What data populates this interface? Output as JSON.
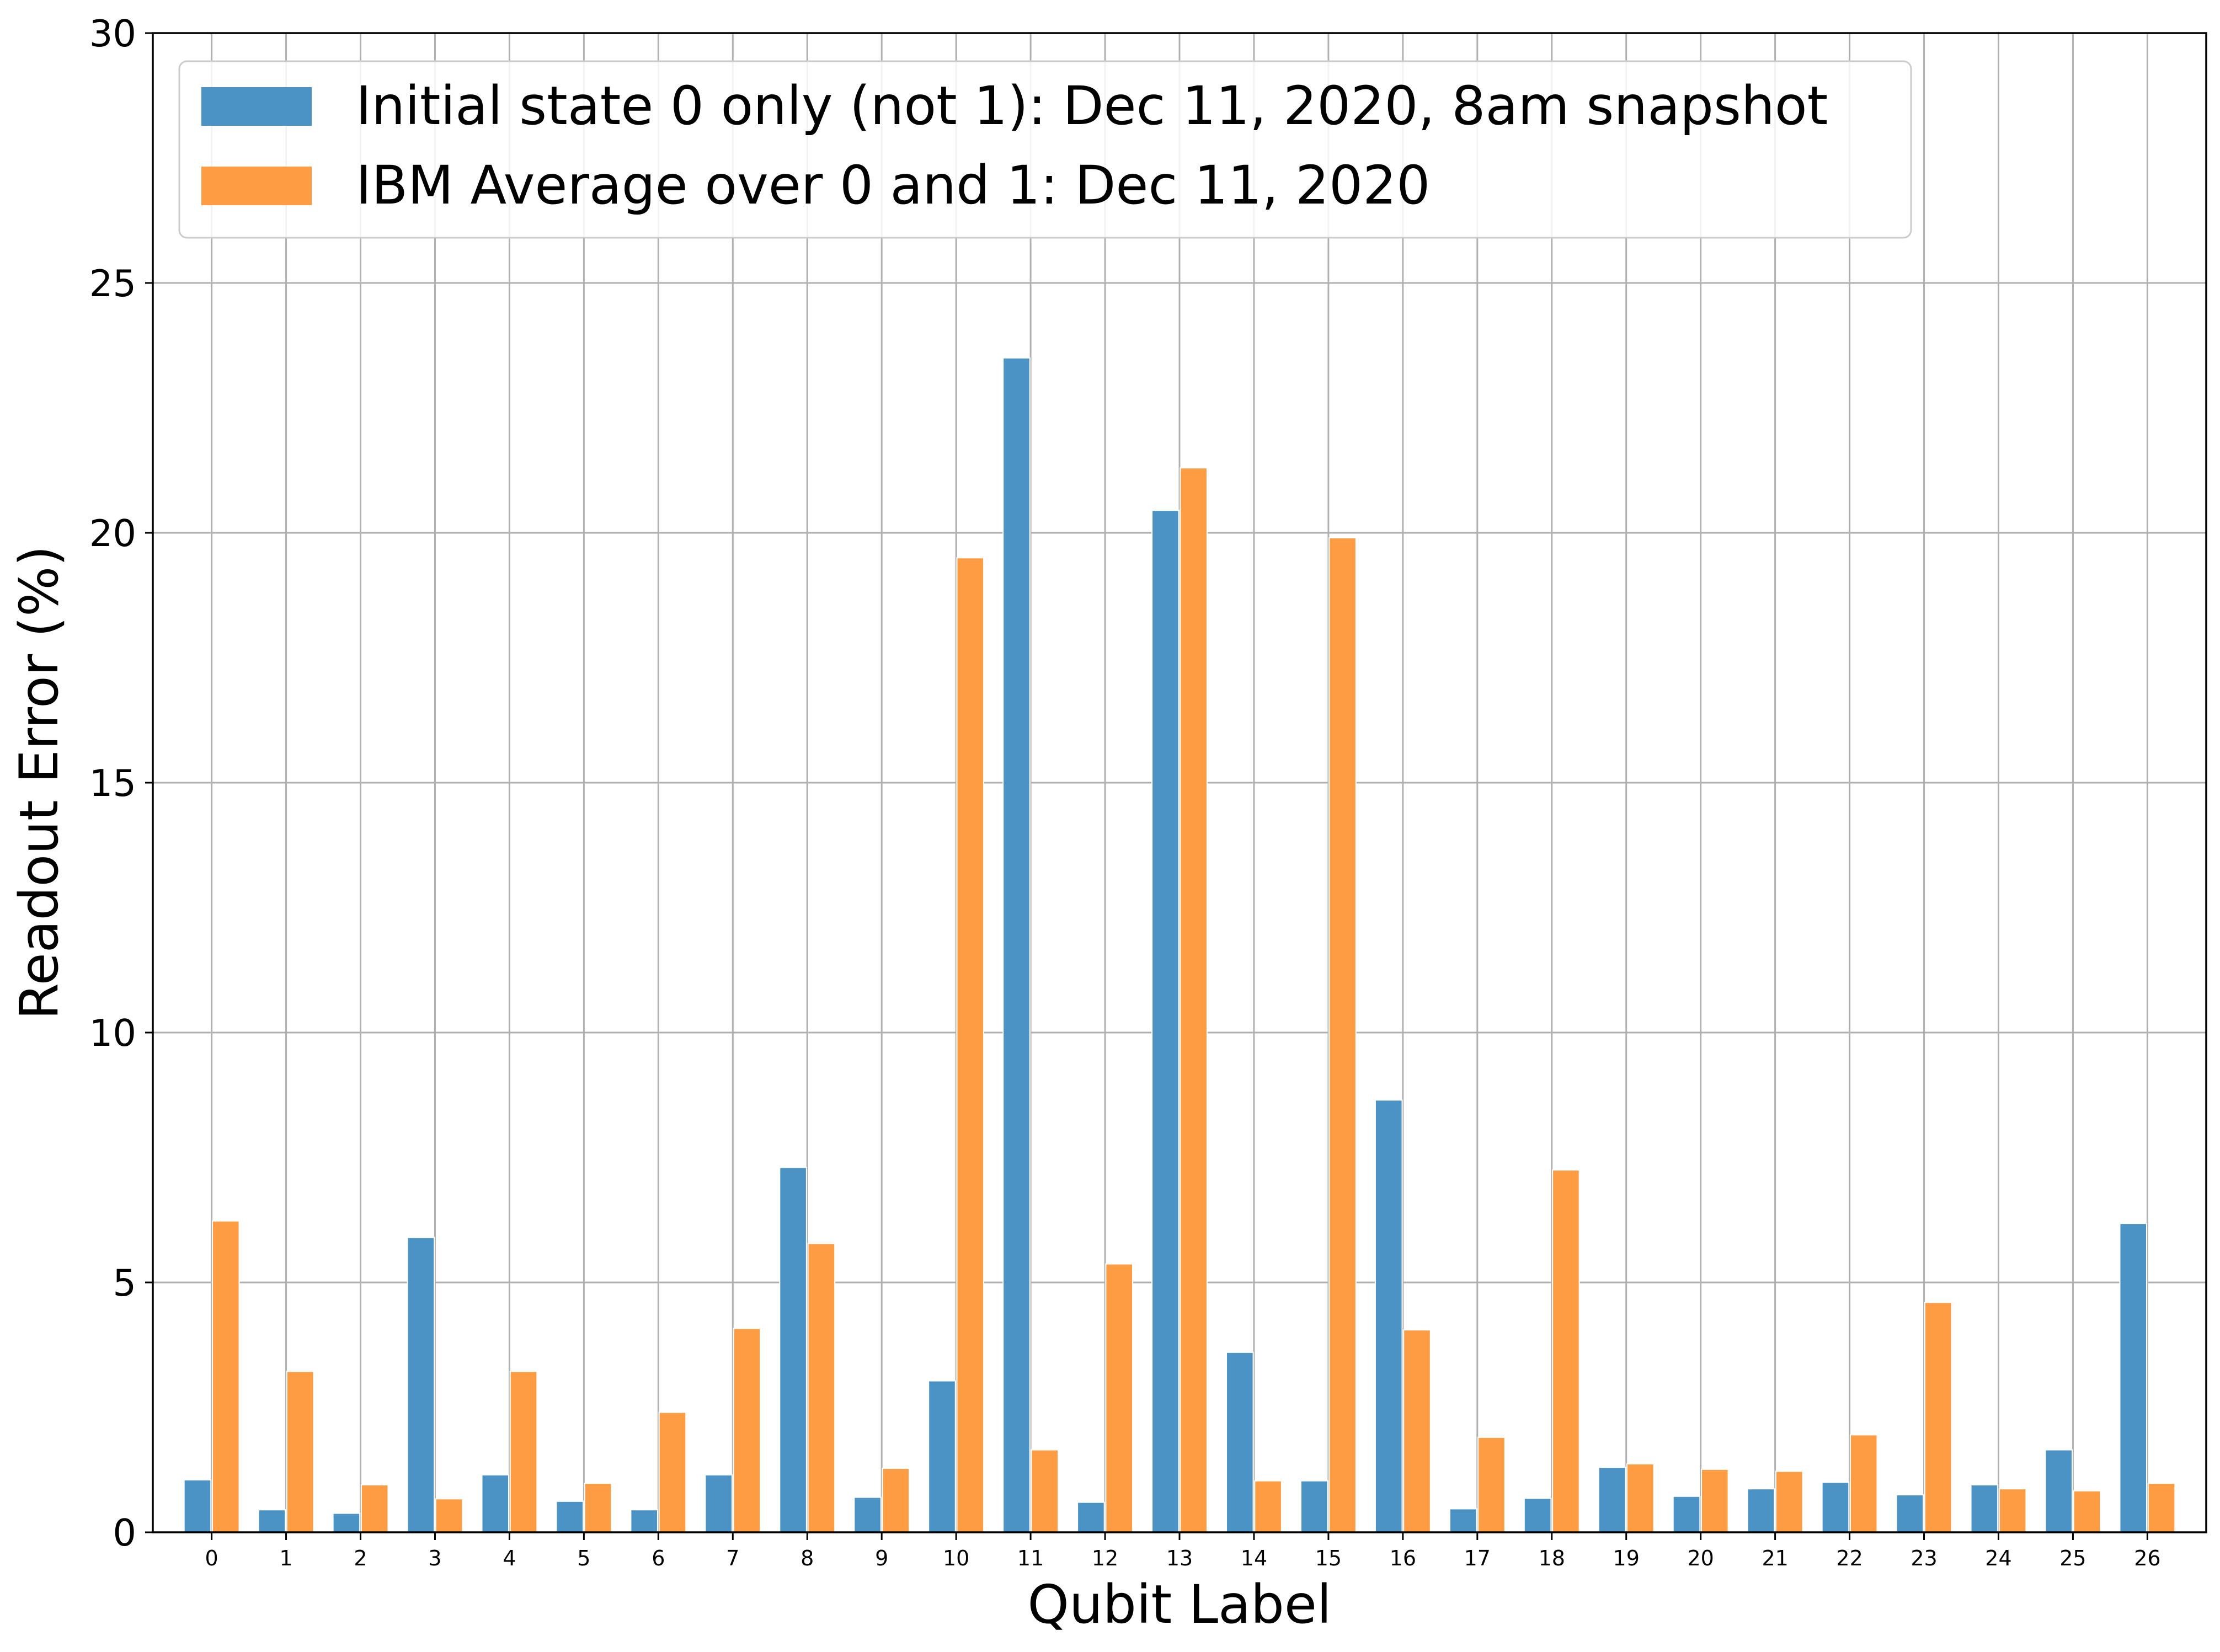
{
  "chart_data": {
    "type": "bar",
    "title": "",
    "xlabel": "Qubit Label",
    "ylabel": "Readout Error (%)",
    "ylim": [
      0,
      30
    ],
    "yticks": [
      0,
      5,
      10,
      15,
      20,
      25,
      30
    ],
    "categories": [
      "0",
      "1",
      "2",
      "3",
      "4",
      "5",
      "6",
      "7",
      "8",
      "9",
      "10",
      "11",
      "12",
      "13",
      "14",
      "15",
      "16",
      "17",
      "18",
      "19",
      "20",
      "21",
      "22",
      "23",
      "24",
      "25",
      "26"
    ],
    "grid": true,
    "legend_position": "top-left",
    "series": [
      {
        "name": "Initial state 0 only (not 1): Dec 11, 2020, 8am snapshot",
        "color": "#4c93c5",
        "values": [
          1.05,
          0.45,
          0.38,
          5.9,
          1.15,
          0.62,
          0.45,
          1.15,
          7.3,
          0.7,
          3.03,
          23.5,
          0.6,
          20.45,
          3.6,
          1.03,
          8.65,
          0.47,
          0.68,
          1.3,
          0.72,
          0.87,
          1.0,
          0.75,
          0.95,
          1.65,
          6.18
        ]
      },
      {
        "name": "IBM Average over 0 and 1: Dec 11, 2020",
        "color": "#fd9c42",
        "values": [
          6.23,
          3.22,
          0.95,
          0.67,
          3.22,
          0.98,
          2.4,
          4.08,
          5.78,
          1.28,
          19.5,
          1.65,
          5.37,
          21.3,
          1.03,
          19.9,
          4.05,
          1.9,
          7.25,
          1.37,
          1.26,
          1.22,
          1.95,
          4.6,
          0.87,
          0.83,
          0.98
        ]
      }
    ]
  }
}
